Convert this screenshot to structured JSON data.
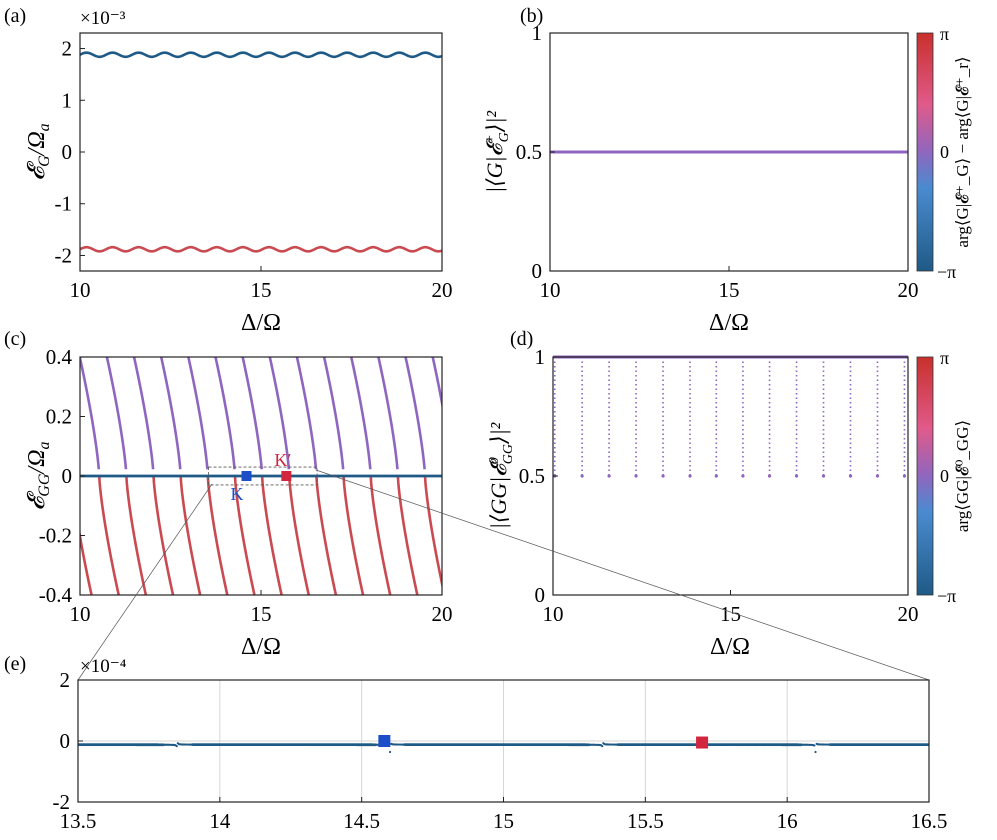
{
  "colors": {
    "blue": "#1f5a86",
    "red": "#c94a50",
    "purple": "#8f66bf",
    "grid": "#d6d6d6",
    "marker_blue": "#1c4fc7",
    "marker_red": "#d1263d"
  },
  "chart_data": [
    {
      "type": "line",
      "panel": "(a)",
      "xlabel": "Δ/Ω",
      "ylabel": "𝓔_G/Ω_a",
      "scale_label": "×10⁻³",
      "xlim": [
        10,
        20
      ],
      "ylim": [
        -2.3,
        2.3
      ],
      "xticks": [
        "10",
        "15",
        "20"
      ],
      "yticks": [
        "2",
        "1",
        "0",
        "-1",
        "-2"
      ],
      "series": [
        {
          "name": "upper",
          "color": "blue",
          "mean": 1.88,
          "amplitude": 0.04,
          "period": 0.72
        },
        {
          "name": "lower",
          "color": "red",
          "mean": -1.88,
          "amplitude": 0.04,
          "period": 0.72
        }
      ]
    },
    {
      "type": "line",
      "panel": "(b)",
      "xlabel": "Δ/Ω",
      "ylabel": "|⟨G|𝓔⁺_G⟩|²",
      "xlim": [
        10,
        20
      ],
      "ylim": [
        0,
        1
      ],
      "xticks": [
        "10",
        "15",
        "20"
      ],
      "yticks": [
        "1",
        "0.5",
        "0"
      ],
      "series": [
        {
          "name": "overlap",
          "color": "purple",
          "x": [
            10,
            20
          ],
          "y": [
            0.5,
            0.5
          ]
        }
      ],
      "colorbar": {
        "label": "arg⟨G|𝓔⁺_G⟩ − arg⟨G|𝓔⁺_r⟩",
        "ticks": [
          "π",
          "0",
          "−π"
        ]
      }
    },
    {
      "type": "line",
      "panel": "(c)",
      "xlabel": "Δ/Ω",
      "ylabel": "𝓔_GG/Ω_a",
      "xlim": [
        10,
        20
      ],
      "ylim": [
        -0.4,
        0.4
      ],
      "xticks": [
        "10",
        "15",
        "20"
      ],
      "yticks": [
        "0.4",
        "0.2",
        "0",
        "-0.2",
        "-0.4"
      ],
      "branch_period": 0.75,
      "branch_start": 9.95,
      "branch_count": 14,
      "flat_line": {
        "y": 0,
        "color": "blue"
      },
      "annotations": [
        {
          "label": "K",
          "x": 14.6,
          "y": 0,
          "color": "marker_blue"
        },
        {
          "label": "K′",
          "x": 15.7,
          "y": 0,
          "color": "marker_red"
        }
      ]
    },
    {
      "type": "scatter",
      "panel": "(d)",
      "xlabel": "Δ/Ω",
      "ylabel": "|⟨GG|𝓔⁰_GG⟩|²",
      "xlim": [
        10,
        20
      ],
      "ylim": [
        0,
        1
      ],
      "xticks": [
        "10",
        "15",
        "20"
      ],
      "yticks": [
        "1",
        "0.5",
        "0"
      ],
      "baseline": 1.0,
      "dip_min": 0.5,
      "dip_positions": [
        10.05,
        10.82,
        11.58,
        12.34,
        13.1,
        13.86,
        14.6,
        15.35,
        16.1,
        16.86,
        17.62,
        18.38,
        19.14,
        19.9
      ],
      "colorbar": {
        "label": "arg⟨GG|𝓔⁰_GG⟩",
        "ticks": [
          "π",
          "0",
          "−π"
        ]
      }
    },
    {
      "type": "scatter",
      "panel": "(e)",
      "xlabel": "",
      "ylabel": "",
      "scale_label": "×10⁻⁴",
      "xlim": [
        13.5,
        16.5
      ],
      "ylim": [
        -2,
        2
      ],
      "xticks": [
        "13.5",
        "14",
        "14.5",
        "15",
        "15.5",
        "16",
        "16.5"
      ],
      "yticks": [
        "2",
        "0",
        "-2"
      ],
      "poles": [
        13.85,
        14.6,
        15.35,
        16.1
      ],
      "markers": [
        {
          "label": "K",
          "x": 14.58,
          "y": 0.0,
          "color": "marker_blue"
        },
        {
          "label": "K′",
          "x": 15.7,
          "y": -0.05,
          "color": "marker_red"
        }
      ]
    }
  ]
}
